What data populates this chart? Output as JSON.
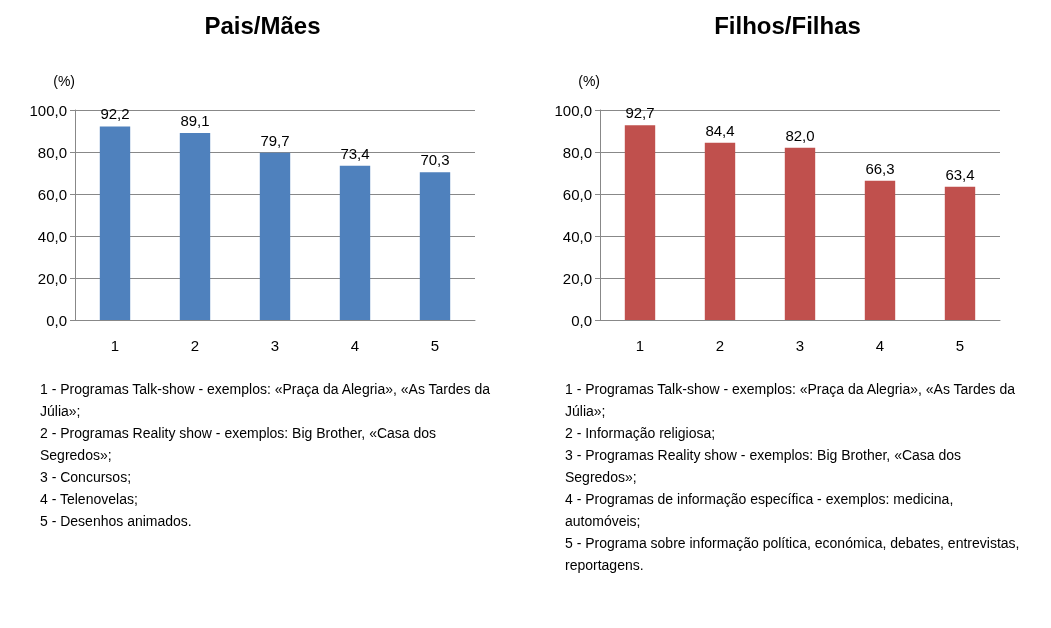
{
  "chart_data": [
    {
      "type": "bar",
      "title": "Pais/Mães",
      "ylabel": "(%)",
      "categories": [
        "1",
        "2",
        "3",
        "4",
        "5"
      ],
      "values": [
        92.2,
        89.1,
        79.7,
        73.4,
        70.3
      ],
      "value_labels": [
        "92,2",
        "89,1",
        "79,7",
        "73,4",
        "70,3"
      ],
      "color": "#4f81bd",
      "ylim": [
        0,
        100
      ],
      "yticks": [
        {
          "value": 0,
          "label": "0,0"
        },
        {
          "value": 20,
          "label": "20,0"
        },
        {
          "value": 40,
          "label": "40,0"
        },
        {
          "value": 60,
          "label": "60,0"
        },
        {
          "value": 80,
          "label": "80,0"
        },
        {
          "value": 100,
          "label": "100,0"
        }
      ],
      "grid": "y",
      "annotations": [
        "1 - Programas Talk-show - exemplos: «Praça da Alegria», «As Tardes da Júlia»;",
        "2 - Programas Reality show - exemplos: Big Brother, «Casa dos Segredos»;",
        "3 - Concursos;",
        "4 - Telenovelas;",
        "5 - Desenhos animados."
      ]
    },
    {
      "type": "bar",
      "title": "Filhos/Filhas",
      "ylabel": "(%)",
      "categories": [
        "1",
        "2",
        "3",
        "4",
        "5"
      ],
      "values": [
        92.7,
        84.4,
        82.0,
        66.3,
        63.4
      ],
      "value_labels": [
        "92,7",
        "84,4",
        "82,0",
        "66,3",
        "63,4"
      ],
      "color": "#c0504d",
      "ylim": [
        0,
        100
      ],
      "yticks": [
        {
          "value": 0,
          "label": "0,0"
        },
        {
          "value": 20,
          "label": "20,0"
        },
        {
          "value": 40,
          "label": "40,0"
        },
        {
          "value": 60,
          "label": "60,0"
        },
        {
          "value": 80,
          "label": "80,0"
        },
        {
          "value": 100,
          "label": "100,0"
        }
      ],
      "grid": "y",
      "annotations": [
        "1 - Programas Talk-show - exemplos: «Praça da Alegria», «As Tardes da Júlia»;",
        "2 - Informação religiosa;",
        "3 - Programas Reality show - exemplos: Big Brother, «Casa dos Segredos»;",
        "4 - Programas de informação específica - exemplos: medicina, automóveis;",
        "5 - Programa sobre informação política, económica, debates, entrevistas, reportagens."
      ]
    }
  ]
}
